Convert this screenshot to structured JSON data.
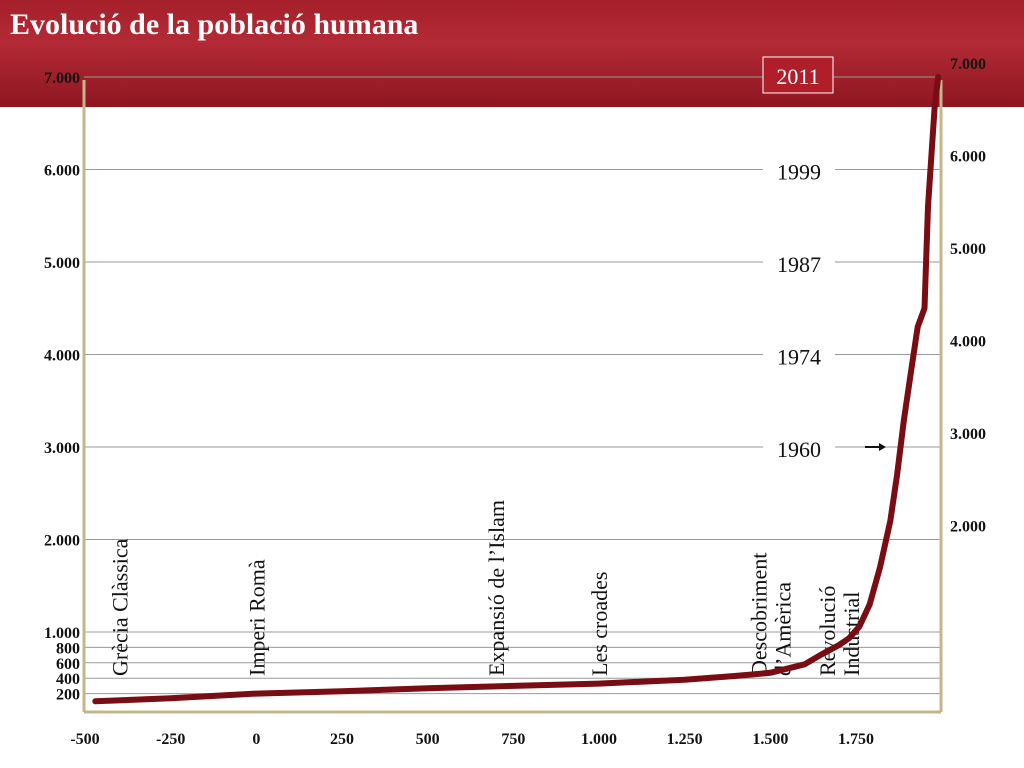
{
  "page": {
    "title": "Evolució de la població humana",
    "colors": {
      "header_bg": "#a5202b",
      "curve": "#7a0c14",
      "axis": "#c5b58a",
      "grid": "#9a9a9a",
      "year_box": "#b01e2a"
    }
  },
  "chart_data": {
    "type": "line",
    "title": "Evolució de la població humana",
    "xlabel": "",
    "ylabel": "",
    "xlim": [
      -500,
      2011
    ],
    "ylim": [
      0,
      7000
    ],
    "grid": true,
    "x_ticks": [
      "-500",
      "-250",
      "0",
      "250",
      "500",
      "750",
      "1.000",
      "1.250",
      "1.500",
      "1.750"
    ],
    "x_tick_values": [
      -500,
      -250,
      0,
      250,
      500,
      750,
      1000,
      1250,
      1500,
      1750
    ],
    "y_ticks_left": [
      "200",
      "400",
      "600",
      "800",
      "1.000",
      "2.000",
      "3.000",
      "4.000",
      "5.000",
      "6.000",
      "7.000"
    ],
    "y_tick_values_left": [
      200,
      400,
      600,
      800,
      1000,
      2000,
      3000,
      4000,
      5000,
      6000,
      7000
    ],
    "y_ticks_right": [
      "2.000",
      "3.000",
      "4.000",
      "5.000",
      "6.000",
      "7.000"
    ],
    "y_tick_values_right": [
      2000,
      3000,
      4000,
      5000,
      6000,
      7000
    ],
    "series": [
      {
        "values": [
          [
            -470,
            100
          ],
          [
            -250,
            140
          ],
          [
            0,
            200
          ],
          [
            250,
            230
          ],
          [
            500,
            270
          ],
          [
            750,
            300
          ],
          [
            1000,
            330
          ],
          [
            1250,
            380
          ],
          [
            1400,
            430
          ],
          [
            1500,
            470
          ],
          [
            1600,
            580
          ],
          [
            1650,
            710
          ],
          [
            1700,
            830
          ],
          [
            1730,
            920
          ],
          [
            1760,
            1060
          ],
          [
            1790,
            1300
          ],
          [
            1820,
            1700
          ],
          [
            1850,
            2200
          ],
          [
            1870,
            2700
          ],
          [
            1890,
            3300
          ],
          [
            1910,
            3800
          ],
          [
            1930,
            4300
          ],
          [
            1950,
            4500
          ],
          [
            1960,
            5600
          ],
          [
            1980,
            6700
          ],
          [
            1990,
            7000
          ]
        ]
      }
    ],
    "year_markers": [
      {
        "label": "2011",
        "value": 7000,
        "highlight": true
      },
      {
        "label": "1999",
        "value": 6000
      },
      {
        "label": "1987",
        "value": 5000
      },
      {
        "label": "1974",
        "value": 4000
      },
      {
        "label": "1960",
        "value": 3000
      }
    ],
    "annotations": [
      {
        "lines": [
          "Grècia Clàssica"
        ],
        "x": -400
      },
      {
        "lines": [
          "Imperi Romà"
        ],
        "x": 0
      },
      {
        "lines": [
          "Expansió de l’Islam"
        ],
        "x": 700
      },
      {
        "lines": [
          "Les croades"
        ],
        "x": 1000
      },
      {
        "lines": [
          "Descobriment",
          "d’Amèrica"
        ],
        "x": 1500
      },
      {
        "lines": [
          "Revolució",
          "Industrial"
        ],
        "x": 1700
      }
    ]
  }
}
